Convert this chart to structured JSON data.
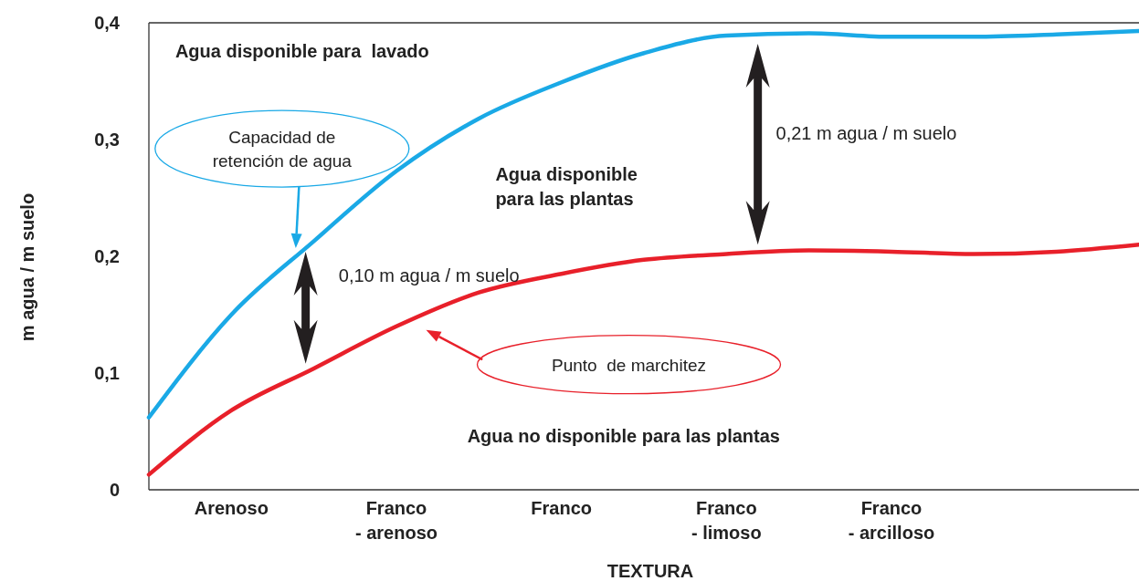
{
  "chart_data": {
    "type": "line",
    "xlabel": "TEXTURA",
    "ylabel": "m agua / m suelo",
    "categories": [
      null,
      "Arenoso",
      null,
      "Franco\n- arenoso",
      null,
      "Franco",
      null,
      "Franco\n- limoso",
      null,
      "Franco\n- arcilloso",
      null,
      null,
      null
    ],
    "ylim": [
      0,
      0.4
    ],
    "yticks": [
      0,
      {
        "value": 0.1,
        "label": "0,1"
      },
      {
        "value": 0.2,
        "label": "0,2"
      },
      {
        "value": 0.3,
        "label": "0,3"
      },
      {
        "value": 0.4,
        "label": "0,4"
      }
    ],
    "grid": false,
    "marker": "none",
    "line_style": "solid",
    "series": [
      {
        "color": "#1aa9e6",
        "values": [
          0.062,
          0.15,
          0.213,
          0.273,
          0.318,
          0.349,
          0.374,
          0.389,
          0.391,
          0.388,
          0.388,
          0.39,
          0.393
        ]
      },
      {
        "color": "#e8202a",
        "values": [
          0.013,
          0.068,
          0.104,
          0.14,
          0.169,
          0.185,
          0.197,
          0.202,
          0.205,
          0.204,
          0.202,
          0.204,
          0.21
        ]
      }
    ],
    "annotations": [
      "Agua disponible para  lavado",
      "Capacidad de\nretención de agua",
      "0,10 m agua / m suelo",
      "0,21 m agua / m suelo",
      "Agua disponible\npara las plantas",
      "Punto  de marchitez",
      "Agua no disponible para las plantas"
    ]
  }
}
